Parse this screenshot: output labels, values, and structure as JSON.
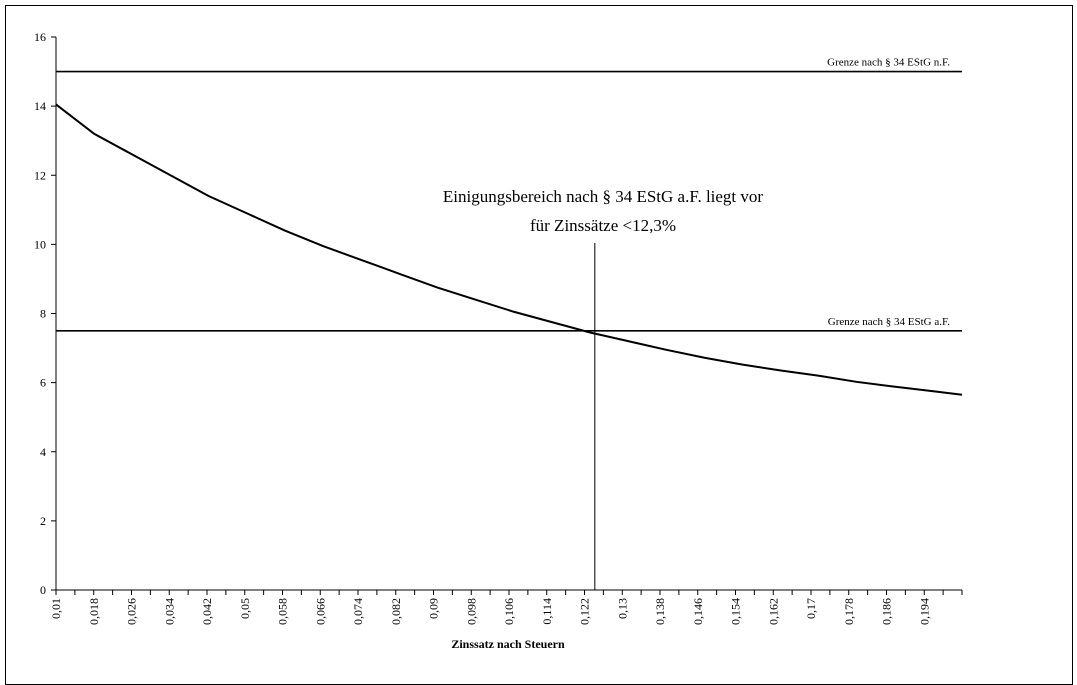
{
  "chart_data": {
    "type": "line",
    "title": "",
    "xlabel": "Zinssatz nach Steuern",
    "ylabel": "",
    "xlim": [
      0.01,
      0.2
    ],
    "ylim": [
      0,
      16
    ],
    "yticks": [
      0,
      2,
      4,
      6,
      8,
      10,
      12,
      14,
      16
    ],
    "xtick_labels": [
      "0,01",
      "0,018",
      "0,026",
      "0,034",
      "0,042",
      "0,05",
      "0,058",
      "0,066",
      "0,074",
      "0,082",
      "0,09",
      "0,098",
      "0,106",
      "0,114",
      "0,122",
      "0,13",
      "0,138",
      "0,146",
      "0,154",
      "0,162",
      "0,17",
      "0,178",
      "0,186",
      "0,194"
    ],
    "grid": false,
    "legend": "none",
    "series": [
      {
        "x": [
          0.01,
          0.018,
          0.026,
          0.034,
          0.042,
          0.05,
          0.058,
          0.066,
          0.074,
          0.082,
          0.09,
          0.098,
          0.106,
          0.114,
          0.122,
          0.13,
          0.138,
          0.146,
          0.154,
          0.162,
          0.17,
          0.178,
          0.186,
          0.194,
          0.2
        ],
        "values": [
          14.05,
          13.2,
          12.6,
          12.0,
          11.4,
          10.9,
          10.4,
          9.95,
          9.55,
          9.15,
          8.75,
          8.4,
          8.05,
          7.75,
          7.45,
          7.2,
          6.95,
          6.72,
          6.52,
          6.35,
          6.2,
          6.02,
          5.88,
          5.75,
          5.65
        ]
      }
    ],
    "reference_lines": [
      {
        "y": 15,
        "label": "Grenze nach § 34 EStG n.F."
      },
      {
        "y": 7.5,
        "label": "Grenze nach § 34 EStG a.F."
      }
    ],
    "vertical_marker": {
      "x": 0.123
    },
    "annotation": {
      "line1": "Einigungsbereich nach § 34 EStG a.F. liegt vor",
      "line2": "für Zinssätze <12,3%"
    }
  }
}
